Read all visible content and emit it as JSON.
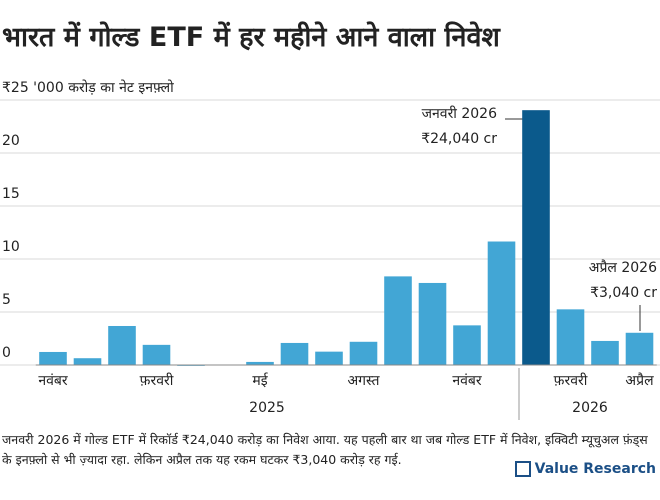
{
  "chart_data": {
    "type": "bar",
    "title": "भारत में गोल्ड ETF में हर महीने आने वाला निवेश",
    "categories": [
      "नवंबर",
      null,
      null,
      "फ़रवरी",
      null,
      null,
      "मई",
      null,
      null,
      "अगस्त",
      null,
      null,
      "नवंबर",
      null,
      null,
      "फ़रवरी",
      null,
      "अप्रैल"
    ],
    "values": [
      1.23,
      0.64,
      3.68,
      1.9,
      -0.08,
      -0.01,
      0.29,
      2.08,
      1.26,
      2.19,
      8.36,
      7.74,
      3.74,
      11.65,
      24.04,
      5.25,
      2.27,
      3.04
    ],
    "colors": [
      "#42a6d5",
      "#42a6d5",
      "#42a6d5",
      "#42a6d5",
      "#42a6d5",
      "#42a6d5",
      "#42a6d5",
      "#42a6d5",
      "#42a6d5",
      "#42a6d5",
      "#42a6d5",
      "#42a6d5",
      "#42a6d5",
      "#42a6d5",
      "#0b5a8c",
      "#42a6d5",
      "#42a6d5",
      "#42a6d5"
    ],
    "ylim": [
      -0.5,
      25
    ],
    "yticks": [
      0,
      5,
      10,
      15,
      20,
      {
        "value": 25,
        "label": "₹25 '000 करोड़ का नेट इनफ़्लो"
      }
    ],
    "grid": true,
    "year_labels": [
      "2025",
      "2026"
    ],
    "annotations": [
      {
        "title": "जनवरी 2026",
        "text": "₹24,040 cr"
      },
      {
        "title": "अप्रैल 2026",
        "text": "₹3,040 cr"
      }
    ],
    "note": "जनवरी 2026 में गोल्ड ETF में रिकॉर्ड ₹24,040 करोड़ का निवेश आया. यह पहली बार था जब गोल्ड ETF में निवेश, इक्विटी म्यूचुअल फ़ंड्स के इनफ़्लो से भी ज़्यादा रहा. लेकिन अप्रैल तक यह रकम घटकर ₹3,040 करोड़ रह गई.",
    "brand": "Value Research"
  }
}
